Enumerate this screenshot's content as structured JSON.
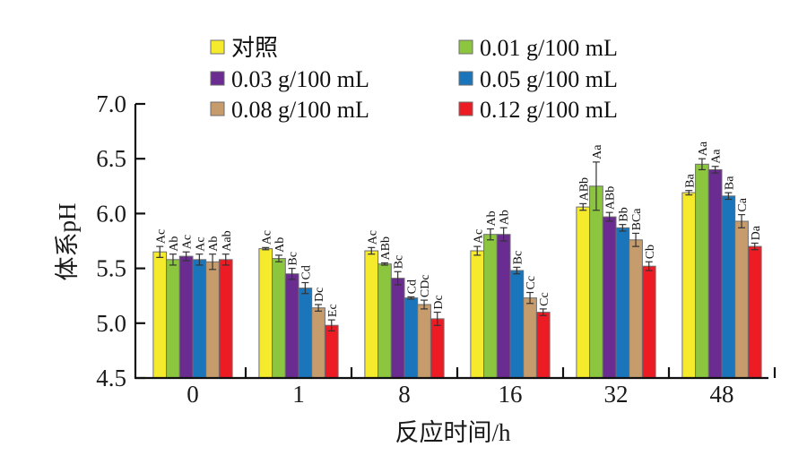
{
  "chart_data": {
    "type": "bar",
    "title": "",
    "xlabel": "反应时间/h",
    "ylabel": "体系pH",
    "ylim": [
      4.5,
      7.0
    ],
    "yticks": [
      "4.5",
      "5.0",
      "5.5",
      "6.0",
      "6.5",
      "7.0"
    ],
    "ytick_values": [
      4.5,
      5.0,
      5.5,
      6.0,
      6.5,
      7.0
    ],
    "categories": [
      "0",
      "1",
      "8",
      "16",
      "32",
      "48"
    ],
    "grid": false,
    "legend_position": "top",
    "series": [
      {
        "name": "对照",
        "color": "#f5ea2c",
        "values": [
          5.65,
          5.68,
          5.66,
          5.66,
          6.06,
          6.19
        ],
        "errors": [
          0.05,
          0.01,
          0.03,
          0.04,
          0.03,
          0.02
        ],
        "labels": [
          "Ac",
          "Ac",
          "Ac",
          "Ac",
          "ABb",
          "Ba"
        ]
      },
      {
        "name": "0.01 g/100 mL",
        "color": "#8cc63f",
        "values": [
          5.58,
          5.59,
          5.54,
          5.81,
          6.25,
          6.45
        ],
        "errors": [
          0.05,
          0.03,
          0.01,
          0.05,
          0.22,
          0.05
        ],
        "labels": [
          "Ab",
          "Ab",
          "ABb",
          "Ab",
          "Aa",
          "Aa"
        ]
      },
      {
        "name": "0.03 g/100 mL",
        "color": "#6a2c91",
        "values": [
          5.61,
          5.45,
          5.41,
          5.81,
          5.97,
          6.4
        ],
        "errors": [
          0.04,
          0.05,
          0.06,
          0.06,
          0.04,
          0.03
        ],
        "labels": [
          "Ac",
          "Bc",
          "Bc",
          "Ab",
          "ABb",
          "Aa"
        ]
      },
      {
        "name": "0.05 g/100 mL",
        "color": "#1b75bb",
        "values": [
          5.58,
          5.32,
          5.23,
          5.48,
          5.87,
          6.16
        ],
        "errors": [
          0.05,
          0.05,
          0.01,
          0.03,
          0.03,
          0.03
        ],
        "labels": [
          "Ac",
          "Cd",
          "Cd",
          "Bc",
          "Bb",
          "Ba"
        ]
      },
      {
        "name": "0.08 g/100 mL",
        "color": "#c69c6d",
        "values": [
          5.56,
          5.14,
          5.17,
          5.23,
          5.76,
          5.93
        ],
        "errors": [
          0.07,
          0.03,
          0.04,
          0.05,
          0.06,
          0.06
        ],
        "labels": [
          "Ab",
          "Dc",
          "CDc",
          "Cc",
          "BCa",
          "Ca"
        ]
      },
      {
        "name": "0.12 g/100 mL",
        "color": "#ed1c24",
        "values": [
          5.58,
          4.98,
          5.04,
          5.1,
          5.52,
          5.7
        ],
        "errors": [
          0.05,
          0.05,
          0.06,
          0.03,
          0.04,
          0.03
        ],
        "labels": [
          "Aab",
          "Ec",
          "Dc",
          "Cc",
          "Cb",
          "Da"
        ]
      }
    ]
  }
}
